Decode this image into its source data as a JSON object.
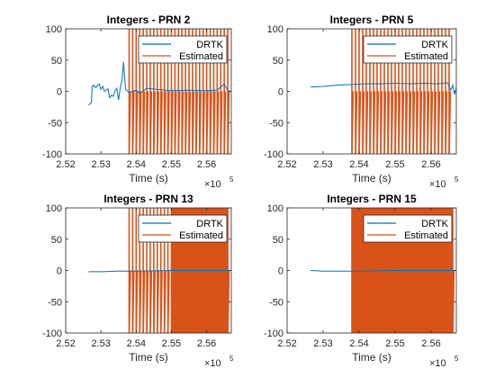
{
  "chart_data": [
    {
      "type": "line",
      "title": "Integers - PRN 2",
      "xlabel": "Time (s)",
      "ylabel": "",
      "xlim": [
        252000,
        256700
      ],
      "ylim": [
        -100,
        100
      ],
      "xticks": [
        "2.52",
        "2.53",
        "2.54",
        "2.55",
        "2.56"
      ],
      "xtick_values": [
        252000,
        253000,
        254000,
        255000,
        256000
      ],
      "yticks": [
        "-100",
        "-50",
        "0",
        "50",
        "100"
      ],
      "ytick_values": [
        -100,
        -50,
        0,
        50,
        100
      ],
      "x_exponent": "×10",
      "x_exponent_power": "5",
      "legend_position": "top-right",
      "series": [
        {
          "name": "DRTK",
          "color": "#0072BD",
          "points": [
            [
              252650,
              -22
            ],
            [
              252730,
              -18
            ],
            [
              252750,
              8
            ],
            [
              252800,
              10
            ],
            [
              252850,
              6
            ],
            [
              252900,
              9
            ],
            [
              252950,
              12
            ],
            [
              253000,
              3
            ],
            [
              253050,
              8
            ],
            [
              253100,
              0
            ],
            [
              253150,
              2
            ],
            [
              253200,
              4
            ],
            [
              253250,
              -10
            ],
            [
              253300,
              -6
            ],
            [
              253350,
              -8
            ],
            [
              253400,
              1
            ],
            [
              253450,
              5
            ],
            [
              253500,
              -14
            ],
            [
              253550,
              6
            ],
            [
              253600,
              18
            ],
            [
              253640,
              47
            ],
            [
              253700,
              3
            ],
            [
              253800,
              -2
            ],
            [
              254000,
              2
            ],
            [
              254100,
              -3
            ],
            [
              254300,
              5
            ],
            [
              254600,
              3
            ],
            [
              255000,
              1
            ],
            [
              255500,
              2
            ],
            [
              256000,
              1
            ],
            [
              256300,
              2
            ],
            [
              256500,
              12
            ],
            [
              256600,
              1
            ],
            [
              256700,
              0
            ]
          ]
        },
        {
          "name": "Estimated",
          "color": "#D95319",
          "start": 253800,
          "end": 256650,
          "spike_spacing": 100,
          "spike_range": [
            -100,
            100
          ],
          "baseline": 0
        }
      ]
    },
    {
      "type": "line",
      "title": "Integers - PRN 5",
      "xlabel": "Time (s)",
      "ylabel": "",
      "xlim": [
        252000,
        256700
      ],
      "ylim": [
        -100,
        100
      ],
      "xticks": [
        "2.52",
        "2.53",
        "2.54",
        "2.55",
        "2.56"
      ],
      "xtick_values": [
        252000,
        253000,
        254000,
        255000,
        256000
      ],
      "yticks": [
        "-100",
        "-50",
        "0",
        "50",
        "100"
      ],
      "ytick_values": [
        -100,
        -50,
        0,
        50,
        100
      ],
      "x_exponent": "×10",
      "x_exponent_power": "5",
      "legend_position": "top-right",
      "series": [
        {
          "name": "DRTK",
          "color": "#0072BD",
          "points": [
            [
              252650,
              7
            ],
            [
              253000,
              8
            ],
            [
              253400,
              10
            ],
            [
              253800,
              11
            ],
            [
              254200,
              12
            ],
            [
              254600,
              12
            ],
            [
              255000,
              13
            ],
            [
              255400,
              12
            ],
            [
              255800,
              13
            ],
            [
              256200,
              12
            ],
            [
              256450,
              14
            ],
            [
              256550,
              2
            ],
            [
              256600,
              10
            ],
            [
              256650,
              -5
            ],
            [
              256700,
              5
            ]
          ]
        },
        {
          "name": "Estimated",
          "color": "#D95319",
          "start": 253800,
          "end": 256500,
          "spike_spacing": 100,
          "spike_range": [
            -100,
            100
          ],
          "baseline": 0
        }
      ]
    },
    {
      "type": "line",
      "title": "Integers - PRN 13",
      "xlabel": "Time (s)",
      "ylabel": "",
      "xlim": [
        252000,
        256700
      ],
      "ylim": [
        -100,
        100
      ],
      "xticks": [
        "2.52",
        "2.53",
        "2.54",
        "2.55",
        "2.56"
      ],
      "xtick_values": [
        252000,
        253000,
        254000,
        255000,
        256000
      ],
      "yticks": [
        "-100",
        "-50",
        "0",
        "50",
        "100"
      ],
      "ytick_values": [
        -100,
        -50,
        0,
        50,
        100
      ],
      "x_exponent": "×10",
      "x_exponent_power": "5",
      "legend_position": "top-right",
      "series": [
        {
          "name": "DRTK",
          "color": "#0072BD",
          "points": [
            [
              252650,
              -2
            ],
            [
              253000,
              -2
            ],
            [
              253500,
              -1
            ],
            [
              254000,
              -1
            ],
            [
              255000,
              0
            ],
            [
              256000,
              0
            ],
            [
              256700,
              0
            ]
          ]
        },
        {
          "name": "Estimated",
          "color": "#D95319",
          "start": 253800,
          "end": 256600,
          "spike_spacing": 100,
          "dense_from": 255000,
          "spike_range": [
            -100,
            100
          ],
          "baseline": 0
        }
      ]
    },
    {
      "type": "line",
      "title": "Integers - PRN 15",
      "xlabel": "Time (s)",
      "ylabel": "",
      "xlim": [
        252000,
        256700
      ],
      "ylim": [
        -100,
        100
      ],
      "xticks": [
        "2.52",
        "2.53",
        "2.54",
        "2.55",
        "2.56"
      ],
      "xtick_values": [
        252000,
        253000,
        254000,
        255000,
        256000
      ],
      "yticks": [
        "-100",
        "-50",
        "0",
        "50",
        "100"
      ],
      "ytick_values": [
        -100,
        -50,
        0,
        50,
        100
      ],
      "x_exponent": "×10",
      "x_exponent_power": "5",
      "legend_position": "top-right",
      "series": [
        {
          "name": "DRTK",
          "color": "#0072BD",
          "points": [
            [
              252650,
              0
            ],
            [
              253000,
              -1
            ],
            [
              253500,
              -1
            ],
            [
              254000,
              -1
            ],
            [
              255000,
              0
            ],
            [
              256000,
              0
            ],
            [
              256700,
              0
            ]
          ]
        },
        {
          "name": "Estimated",
          "color": "#D95319",
          "start": 253800,
          "end": 256600,
          "spike_spacing": 100,
          "dense_from": 253800,
          "spike_range": [
            -100,
            100
          ],
          "baseline": 0
        }
      ]
    }
  ]
}
